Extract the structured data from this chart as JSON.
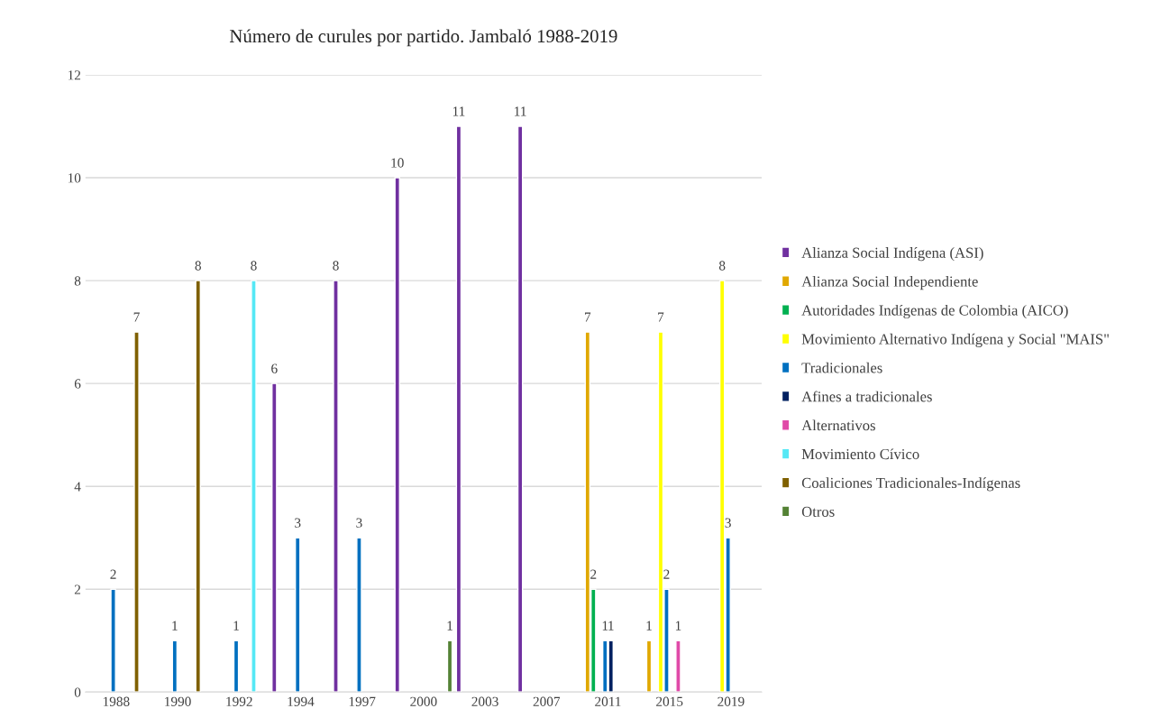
{
  "chart_data": {
    "type": "bar",
    "title": "Número de curules por partido. Jambaló 1988-2019",
    "categories": [
      "1988",
      "1990",
      "1992",
      "1994",
      "1997",
      "2000",
      "2003",
      "2007",
      "2011",
      "2015",
      "2019"
    ],
    "series": [
      {
        "name": "Alianza Social Indígena (ASI)",
        "color": "#7030a0",
        "values": [
          null,
          null,
          null,
          6,
          8,
          10,
          11,
          11,
          null,
          null,
          null
        ]
      },
      {
        "name": "Alianza Social Independiente",
        "color": "#e0a800",
        "values": [
          null,
          null,
          null,
          null,
          null,
          null,
          null,
          null,
          7,
          1,
          null
        ]
      },
      {
        "name": "Autoridades Indígenas de Colombia (AICO)",
        "color": "#00b050",
        "values": [
          null,
          null,
          null,
          null,
          null,
          null,
          null,
          null,
          2,
          null,
          null
        ]
      },
      {
        "name": "Movimiento Alternativo Indígena y Social \"MAIS\"",
        "color": "#ffff00",
        "values": [
          null,
          null,
          null,
          null,
          null,
          null,
          null,
          null,
          null,
          7,
          8
        ]
      },
      {
        "name": "Tradicionales",
        "color": "#0070c0",
        "values": [
          2,
          1,
          1,
          3,
          3,
          null,
          null,
          null,
          1,
          2,
          3
        ]
      },
      {
        "name": "Afines a tradicionales",
        "color": "#002060",
        "values": [
          null,
          null,
          null,
          null,
          null,
          null,
          null,
          null,
          1,
          null,
          null
        ]
      },
      {
        "name": "Alternativos",
        "color": "#e04aa8",
        "values": [
          null,
          null,
          null,
          null,
          null,
          null,
          null,
          null,
          null,
          1,
          null
        ]
      },
      {
        "name": "Movimiento Cívico",
        "color": "#55e8f5",
        "values": [
          null,
          null,
          8,
          null,
          null,
          null,
          null,
          null,
          null,
          null,
          null
        ]
      },
      {
        "name": "Coaliciones Tradicionales-Indígenas",
        "color": "#7f6000",
        "values": [
          7,
          8,
          null,
          null,
          null,
          null,
          null,
          null,
          null,
          null,
          null
        ]
      },
      {
        "name": "Otros",
        "color": "#548235",
        "values": [
          null,
          null,
          null,
          null,
          null,
          1,
          null,
          null,
          null,
          null,
          null
        ]
      }
    ],
    "ylim": [
      0,
      12
    ],
    "yticks": [
      0,
      2,
      4,
      6,
      8,
      10,
      12
    ],
    "grid": "y",
    "legend": "right",
    "data_labels": true
  }
}
